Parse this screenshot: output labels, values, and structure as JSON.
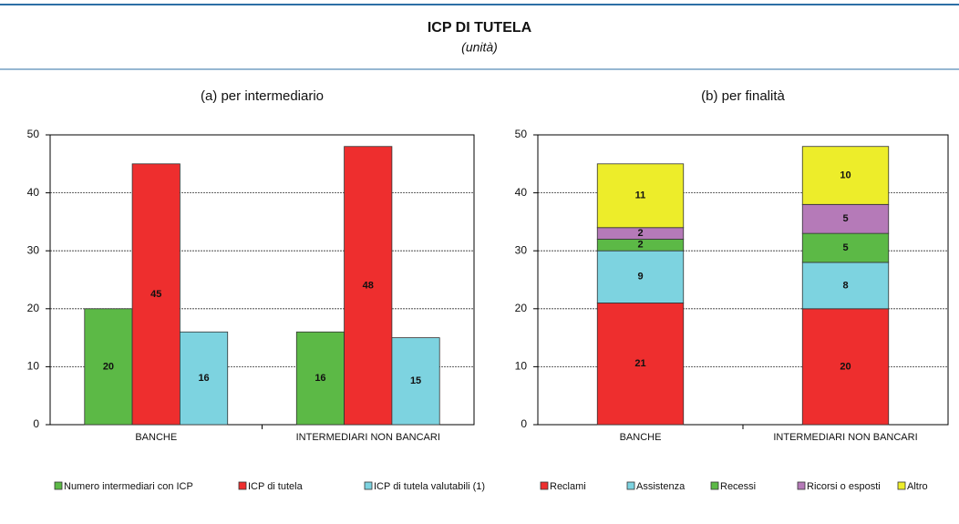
{
  "header": {
    "title": "ICP DI TUTELA",
    "subtitle": "(unità)"
  },
  "chart_data": [
    {
      "type": "bar",
      "title": "(a) per intermediario",
      "categories": [
        "BANCHE",
        "INTERMEDIARI NON BANCARI"
      ],
      "series": [
        {
          "name": "Numero intermediari con ICP",
          "color": "#5cb946",
          "values": [
            20,
            16
          ]
        },
        {
          "name": "ICP di tutela",
          "color": "#ee2e2e",
          "values": [
            45,
            48
          ]
        },
        {
          "name": "ICP di tutela valutabili (1)",
          "color": "#7dd3e0",
          "values": [
            16,
            15
          ]
        }
      ],
      "ylim": [
        0,
        50
      ],
      "yticks": [
        0,
        10,
        20,
        30,
        40,
        50
      ],
      "grid": true,
      "legend": "bottom"
    },
    {
      "type": "bar",
      "stacked": true,
      "title": "(b) per finalità",
      "categories": [
        "BANCHE",
        "INTERMEDIARI NON BANCARI"
      ],
      "series": [
        {
          "name": "Reclami",
          "color": "#ee2e2e",
          "values": [
            21,
            20
          ]
        },
        {
          "name": "Assistenza",
          "color": "#7dd3e0",
          "values": [
            9,
            8
          ]
        },
        {
          "name": "Recessi",
          "color": "#5cb946",
          "values": [
            2,
            5
          ]
        },
        {
          "name": "Ricorsi o esposti",
          "color": "#b57ab8",
          "values": [
            2,
            5
          ]
        },
        {
          "name": "Altro",
          "color": "#eded2a",
          "values": [
            11,
            10
          ]
        }
      ],
      "ylim": [
        0,
        50
      ],
      "yticks": [
        0,
        10,
        20,
        30,
        40,
        50
      ],
      "grid": true,
      "legend": "bottom"
    }
  ]
}
